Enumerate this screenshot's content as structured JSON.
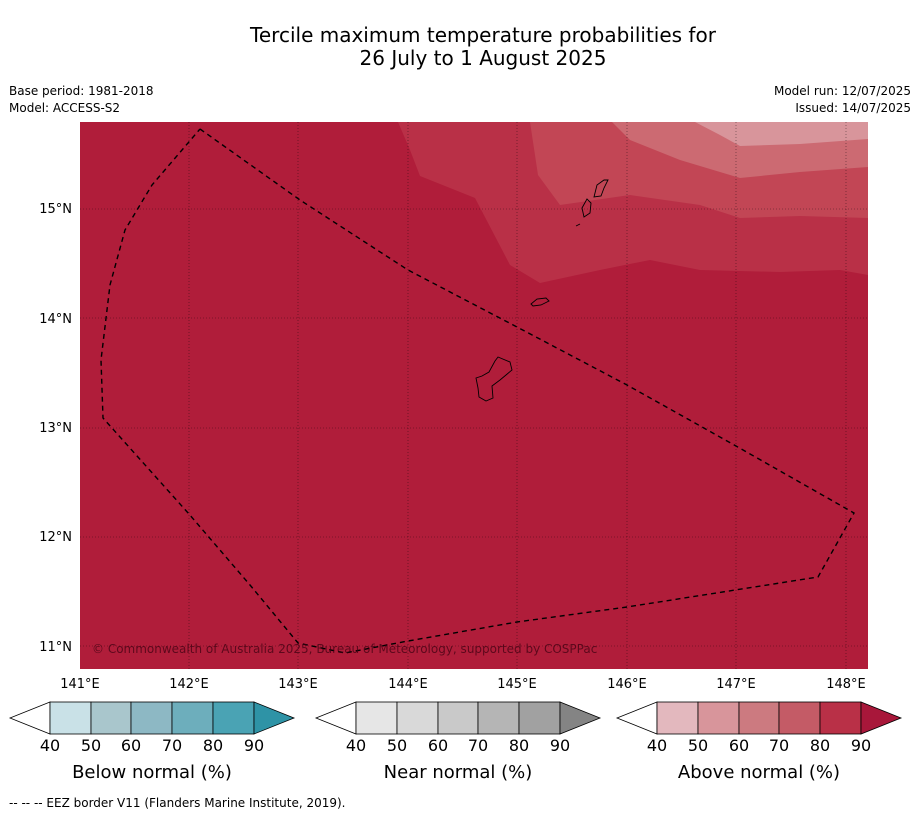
{
  "title": {
    "line1": "Tercile maximum temperature probabilities for",
    "line2": "26 July to 1 August 2025"
  },
  "meta": {
    "base_period": "Base period: 1981-2018",
    "model": "Model: ACCESS-S2",
    "model_run": "Model run: 12/07/2025",
    "issued": "Issued: 14/07/2025"
  },
  "map": {
    "x_ticks": [
      "141°E",
      "142°E",
      "143°E",
      "144°E",
      "145°E",
      "146°E",
      "147°E",
      "148°E"
    ],
    "y_ticks": [
      "15°N",
      "14°N",
      "13°N",
      "12°N",
      "11°N"
    ],
    "copyright": "© Commonwealth of Australia 2025, Bureau of Meteorology, supported by COSPPac",
    "shading_colors": {
      "above_90": "#b01d3a",
      "above_80": "#b93047",
      "above_70": "#c24655",
      "above_60": "#cc6a72",
      "above_50": "#d8959b"
    }
  },
  "colorbars": [
    {
      "label": "Below normal (%)",
      "ticks": [
        "40",
        "50",
        "60",
        "70",
        "80",
        "90"
      ],
      "colors": [
        "#ffffff",
        "#c9e1e7",
        "#a9c6cc",
        "#8db8c4",
        "#6daebc",
        "#4aa3b4",
        "#2e93a6"
      ]
    },
    {
      "label": "Near normal (%)",
      "ticks": [
        "40",
        "50",
        "60",
        "70",
        "80",
        "90"
      ],
      "colors": [
        "#ffffff",
        "#e6e6e6",
        "#d9d9d9",
        "#c9c9c9",
        "#b5b5b5",
        "#a1a1a1",
        "#848484"
      ]
    },
    {
      "label": "Above normal (%)",
      "ticks": [
        "40",
        "50",
        "60",
        "70",
        "80",
        "90"
      ],
      "colors": [
        "#ffffff",
        "#e3b8be",
        "#d8959b",
        "#cc7a80",
        "#c45b66",
        "#b93047",
        "#a8173a"
      ]
    }
  ],
  "footer": "--  --  -- EEZ border V11 (Flanders Marine Institute, 2019)."
}
